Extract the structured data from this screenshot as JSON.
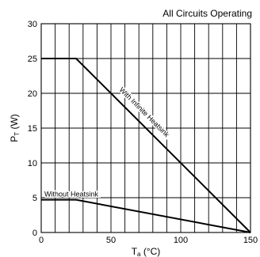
{
  "chart_data": {
    "type": "line",
    "title": "All Circuits Operating",
    "xlabel_main": "T",
    "xlabel_sub": "a",
    "xlabel_unit": " (°C)",
    "ylabel_main": "P",
    "ylabel_sub": "T",
    "ylabel_unit": " (W)",
    "xlim": [
      0,
      150
    ],
    "ylim": [
      0,
      30
    ],
    "x_ticks": [
      "0",
      "50",
      "100",
      "150"
    ],
    "x_tick_values": [
      0,
      50,
      100,
      150
    ],
    "y_ticks": [
      "0",
      "5",
      "10",
      "15",
      "20",
      "25",
      "30"
    ],
    "y_tick_values": [
      0,
      5,
      10,
      15,
      20,
      25,
      30
    ],
    "grid_step_x": 10,
    "grid_step_y": 5,
    "grid": true,
    "series": [
      {
        "name": "With Infinite Heatsink",
        "x": [
          0,
          25,
          150
        ],
        "y": [
          25,
          25,
          0
        ]
      },
      {
        "name": "Without Heatsink",
        "x": [
          0,
          25,
          150
        ],
        "y": [
          4.7,
          4.7,
          0
        ]
      }
    ]
  }
}
